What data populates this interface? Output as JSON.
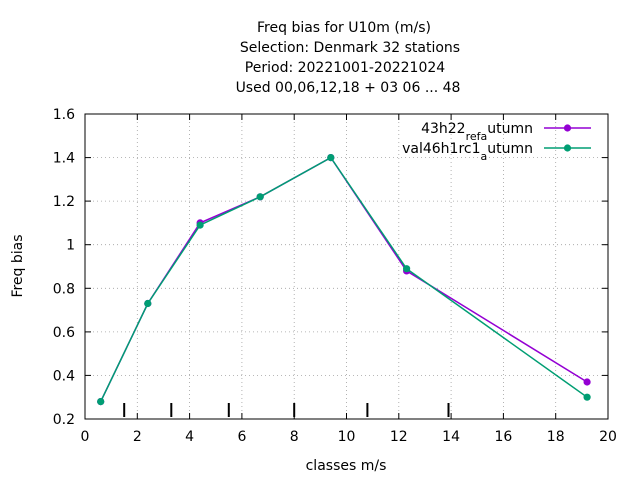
{
  "chart_data": {
    "type": "line",
    "title_lines": [
      "Freq bias  for U10m (m/s)",
      "Selection: Denmark     32 stations",
      "Period: 20221001-20221024",
      "Used  00,06,12,18 + 03 06 ... 48"
    ],
    "xlabel": "classes m/s",
    "ylabel": "Freq bias",
    "xlim": [
      0,
      20
    ],
    "ylim": [
      0.2,
      1.6
    ],
    "xticks": [
      0,
      2,
      4,
      6,
      8,
      10,
      12,
      14,
      16,
      18,
      20
    ],
    "yticks": [
      0.2,
      0.4,
      0.6,
      0.8,
      1,
      1.2,
      1.4,
      1.6
    ],
    "xtick_labels": [
      "0",
      "2",
      "4",
      "6",
      "8",
      "10",
      "12",
      "14",
      "16",
      "18",
      "20"
    ],
    "ytick_labels": [
      "0.2",
      "0.4",
      "0.6",
      "0.8",
      "1",
      "1.2",
      "1.4",
      "1.6"
    ],
    "grid": true,
    "legend_position": "top-right",
    "class_boundaries": [
      1.5,
      3.3,
      5.5,
      8,
      10.8,
      13.9
    ],
    "series": [
      {
        "name": "43h22_ref_autumn",
        "legend_parts": [
          {
            "text": "43h22",
            "sub": false
          },
          {
            "text": "ref",
            "sub": true
          },
          {
            "text": "a",
            "sub": true
          },
          {
            "text": "utumn",
            "sub": false
          }
        ],
        "color": "#9400d3",
        "x": [
          0.6,
          2.4,
          4.4,
          6.7,
          9.4,
          12.3,
          19.2
        ],
        "y": [
          0.28,
          0.73,
          1.1,
          1.22,
          1.4,
          0.88,
          0.37
        ]
      },
      {
        "name": "val46h1rc1_autumn",
        "legend_parts": [
          {
            "text": "val46h1rc1",
            "sub": false
          },
          {
            "text": "a",
            "sub": true
          },
          {
            "text": "utumn",
            "sub": false
          }
        ],
        "color": "#009e73",
        "x": [
          0.6,
          2.4,
          4.4,
          6.7,
          9.4,
          12.3,
          19.2
        ],
        "y": [
          0.28,
          0.73,
          1.09,
          1.22,
          1.4,
          0.89,
          0.3
        ]
      }
    ]
  }
}
